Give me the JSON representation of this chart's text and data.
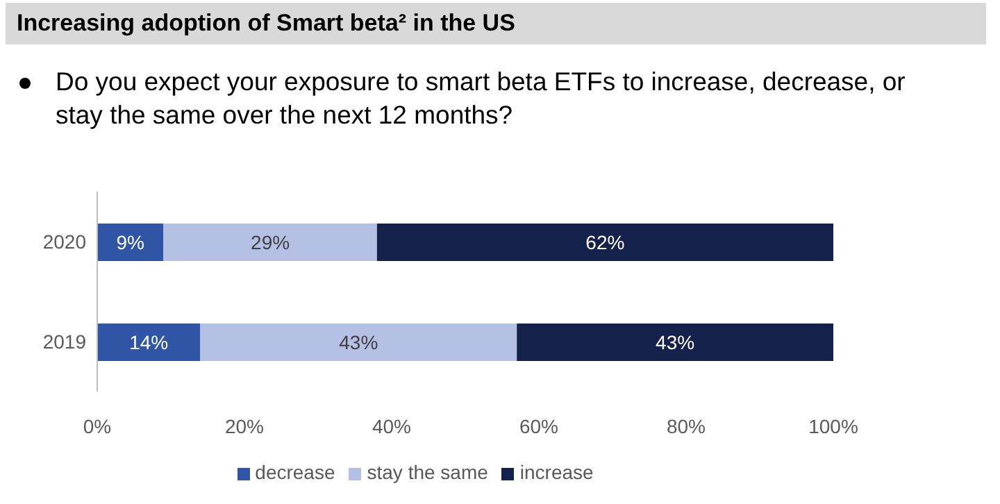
{
  "chart_data": {
    "type": "bar",
    "orientation": "horizontal",
    "stacked": true,
    "title": "Increasing adoption of Smart beta² in the US",
    "subtitle": "Do you expect your exposure to smart beta ETFs to increase, decrease, or stay the same over the next 12 months?",
    "categories": [
      "2020",
      "2019"
    ],
    "series": [
      {
        "name": "decrease",
        "color": "#2f55a4",
        "values": [
          9,
          14
        ],
        "value_labels": [
          "9%",
          "14%"
        ]
      },
      {
        "name": "stay the same",
        "color": "#b4c0e4",
        "values": [
          29,
          43
        ],
        "value_labels": [
          "29%",
          "43%"
        ]
      },
      {
        "name": "increase",
        "color": "#14214a",
        "values": [
          62,
          43
        ],
        "value_labels": [
          "62%",
          "43%"
        ]
      }
    ],
    "xlim": [
      0,
      100
    ],
    "xticks": [
      {
        "value": 0,
        "label": "0%"
      },
      {
        "value": 20,
        "label": "20%"
      },
      {
        "value": 40,
        "label": "40%"
      },
      {
        "value": 60,
        "label": "60%"
      },
      {
        "value": 80,
        "label": "80%"
      },
      {
        "value": 100,
        "label": "100%"
      }
    ],
    "legend": "bottom"
  }
}
